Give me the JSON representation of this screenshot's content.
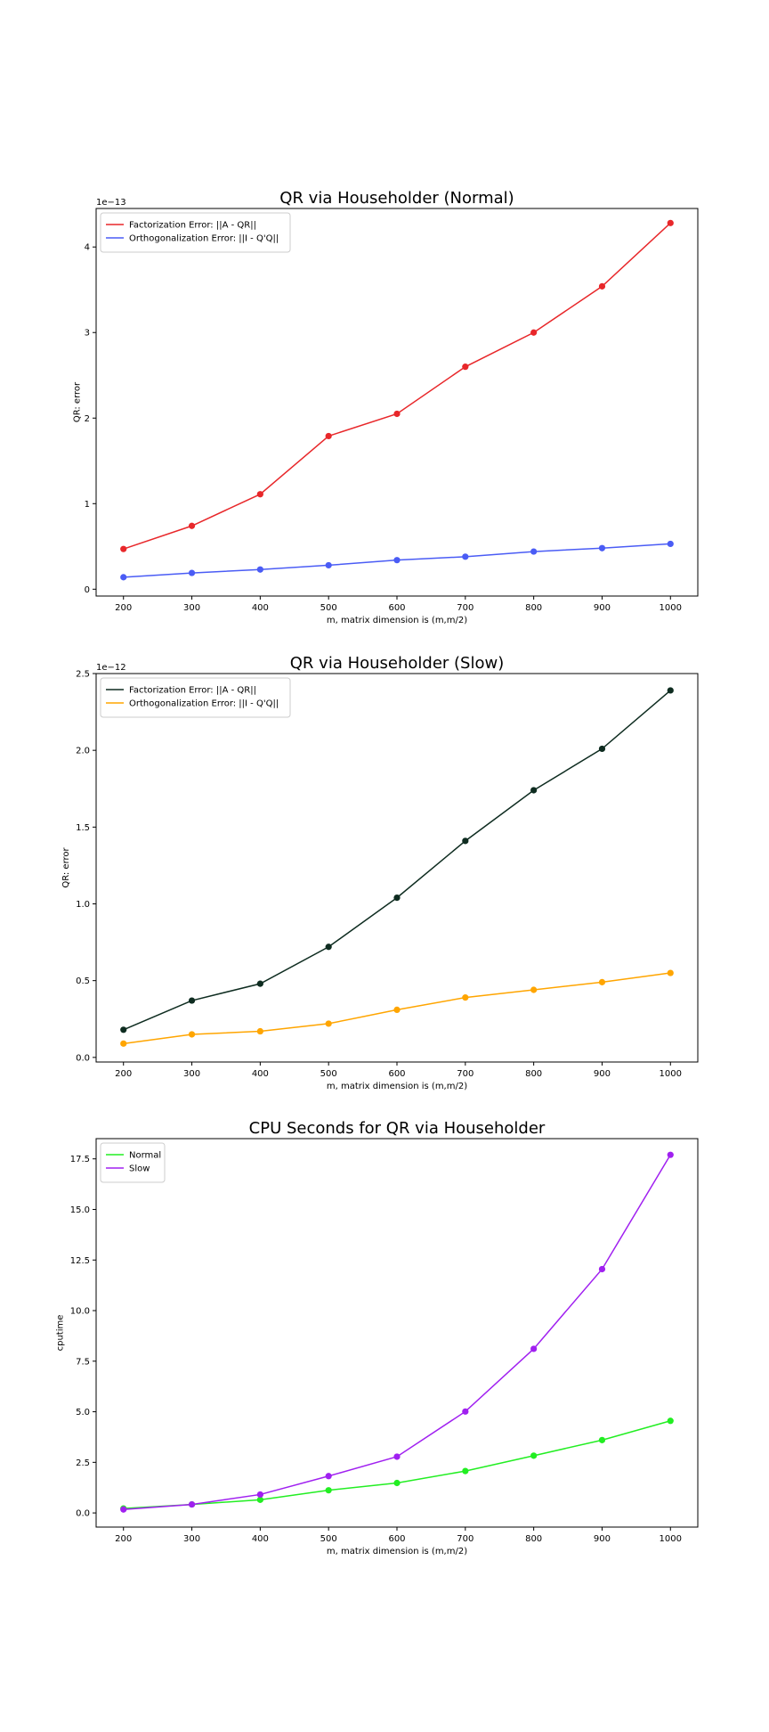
{
  "chart_data": [
    {
      "type": "line",
      "title": "QR via Householder (Normal)",
      "xlabel": "m, matrix dimension is (m,m/2)",
      "ylabel": "QR: error",
      "y_offset_label": "1e−13",
      "xlim": [
        160,
        1040
      ],
      "ylim": [
        -0.08,
        4.45
      ],
      "xticks": [
        200,
        300,
        400,
        500,
        600,
        700,
        800,
        900,
        1000
      ],
      "yticks": [
        0,
        1,
        2,
        3,
        4
      ],
      "ytick_labels": [
        "0",
        "1",
        "2",
        "3",
        "4"
      ],
      "legend_position": "upper left",
      "grid": false,
      "x": [
        200,
        300,
        400,
        500,
        600,
        700,
        800,
        900,
        1000
      ],
      "series": [
        {
          "name": "Factorization Error:           ||A - QR||",
          "color": "#e8272a",
          "values": [
            0.47,
            0.74,
            1.11,
            1.79,
            2.05,
            2.6,
            3.0,
            3.54,
            4.28
          ]
        },
        {
          "name": "Orthogonalization Error:  ||I - Q'Q||",
          "color": "#4a5cf5",
          "values": [
            0.14,
            0.19,
            0.23,
            0.28,
            0.34,
            0.38,
            0.44,
            0.48,
            0.53
          ]
        }
      ]
    },
    {
      "type": "line",
      "title": "QR via Householder (Slow)",
      "xlabel": "m, matrix dimension is (m,m/2)",
      "ylabel": "QR: error",
      "y_offset_label": "1e−12",
      "xlim": [
        160,
        1040
      ],
      "ylim": [
        -0.03,
        2.5
      ],
      "xticks": [
        200,
        300,
        400,
        500,
        600,
        700,
        800,
        900,
        1000
      ],
      "yticks": [
        0,
        0.5,
        1.0,
        1.5,
        2.0,
        2.5
      ],
      "ytick_labels": [
        "0.0",
        "0.5",
        "1.0",
        "1.5",
        "2.0",
        "2.5"
      ],
      "legend_position": "upper left",
      "grid": false,
      "x": [
        200,
        300,
        400,
        500,
        600,
        700,
        800,
        900,
        1000
      ],
      "series": [
        {
          "name": "Factorization Error:           ||A - QR||",
          "color": "#0e2c20",
          "values": [
            0.18,
            0.37,
            0.48,
            0.72,
            1.04,
            1.41,
            1.74,
            2.01,
            2.39
          ]
        },
        {
          "name": "Orthogonalization Error:  ||I - Q'Q||",
          "color": "#ffa500",
          "values": [
            0.09,
            0.15,
            0.17,
            0.22,
            0.31,
            0.39,
            0.44,
            0.49,
            0.55
          ]
        }
      ]
    },
    {
      "type": "line",
      "title": "CPU Seconds for QR via Householder",
      "xlabel": "m, matrix dimension is (m,m/2)",
      "ylabel": "cputime",
      "y_offset_label": "",
      "xlim": [
        160,
        1040
      ],
      "ylim": [
        -0.7,
        18.5
      ],
      "xticks": [
        200,
        300,
        400,
        500,
        600,
        700,
        800,
        900,
        1000
      ],
      "yticks": [
        0,
        2.5,
        5.0,
        7.5,
        10.0,
        12.5,
        15.0,
        17.5
      ],
      "ytick_labels": [
        "0.0",
        "2.5",
        "5.0",
        "7.5",
        "10.0",
        "12.5",
        "15.0",
        "17.5"
      ],
      "legend_position": "upper left",
      "grid": false,
      "x": [
        200,
        300,
        400,
        500,
        600,
        700,
        800,
        900,
        1000
      ],
      "series": [
        {
          "name": "Normal",
          "color": "#22ee22",
          "values": [
            0.22,
            0.42,
            0.65,
            1.12,
            1.48,
            2.07,
            2.83,
            3.6,
            4.55
          ]
        },
        {
          "name": "Slow",
          "color": "#a020f0",
          "values": [
            0.17,
            0.42,
            0.91,
            1.82,
            2.78,
            5.01,
            8.11,
            12.05,
            17.7
          ]
        }
      ]
    }
  ]
}
